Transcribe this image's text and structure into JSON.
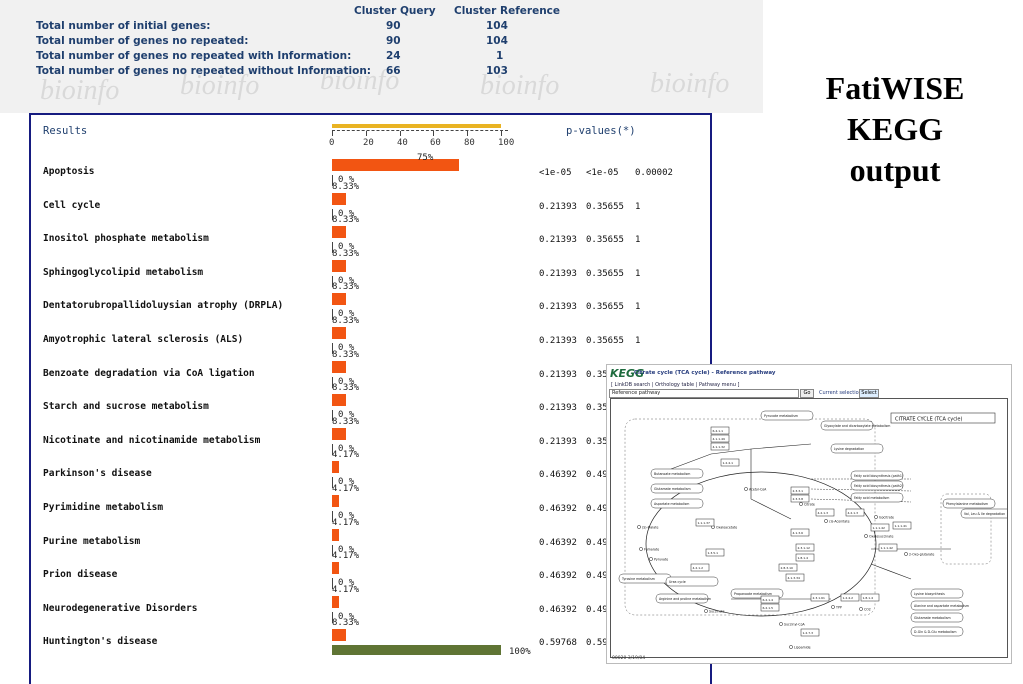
{
  "summary": {
    "col_query": "Cluster Query",
    "col_reference": "Cluster Reference",
    "watermark": "bioinfo",
    "rows": [
      {
        "label": "Total number of initial genes:",
        "query": "90",
        "reference": "104"
      },
      {
        "label": "Total number of genes no repeated:",
        "query": "90",
        "reference": "104"
      },
      {
        "label": "Total number of genes no repeated with Information:",
        "query": "24",
        "reference": "1"
      },
      {
        "label": "Total number of genes no repeated without Information:",
        "query": "66",
        "reference": "103"
      }
    ]
  },
  "title": {
    "line1": "FatiWISE",
    "line2": "KEGG",
    "line3": "output"
  },
  "results": {
    "header": "Results",
    "pvalues_header": "p-values(*)",
    "scale_ticks": [
      "0",
      "20",
      "40",
      "60",
      "80",
      "100"
    ],
    "colors": {
      "bar": "#f25512",
      "bar_full": "#5f7434",
      "scale": "#e9b323",
      "border": "#161b80"
    },
    "rows": [
      {
        "name": "Apoptosis",
        "q": "75%",
        "q_frac": 0.75,
        "r": "0 %",
        "p1": "<1e-05",
        "p2": "<1e-05",
        "p3": "0.00002"
      },
      {
        "name": "Cell cycle",
        "q": "8.33%",
        "q_frac": 0.0833,
        "r": "0 %",
        "p1": "0.21393",
        "p2": "0.35655",
        "p3": "1"
      },
      {
        "name": "Inositol phosphate metabolism",
        "q": "8.33%",
        "q_frac": 0.0833,
        "r": "0 %",
        "p1": "0.21393",
        "p2": "0.35655",
        "p3": "1"
      },
      {
        "name": "Sphingoglycolipid metabolism",
        "q": "8.33%",
        "q_frac": 0.0833,
        "r": "0 %",
        "p1": "0.21393",
        "p2": "0.35655",
        "p3": "1"
      },
      {
        "name": "Dentatorubropallidoluysian atrophy (DRPLA)",
        "q": "8.33%",
        "q_frac": 0.0833,
        "r": "0 %",
        "p1": "0.21393",
        "p2": "0.35655",
        "p3": "1"
      },
      {
        "name": "Amyotrophic lateral sclerosis (ALS)",
        "q": "8.33%",
        "q_frac": 0.0833,
        "r": "0 %",
        "p1": "0.21393",
        "p2": "0.35655",
        "p3": "1"
      },
      {
        "name": "Benzoate degradation via CoA ligation",
        "q": "8.33%",
        "q_frac": 0.0833,
        "r": "0 %",
        "p1": "0.21393",
        "p2": "0.35",
        "p3": ""
      },
      {
        "name": "Starch and sucrose metabolism",
        "q": "8.33%",
        "q_frac": 0.0833,
        "r": "0 %",
        "p1": "0.21393",
        "p2": "0.35",
        "p3": ""
      },
      {
        "name": "Nicotinate and nicotinamide metabolism",
        "q": "8.33%",
        "q_frac": 0.0833,
        "r": "0 %",
        "p1": "0.21393",
        "p2": "0.35",
        "p3": ""
      },
      {
        "name": "Parkinson's disease",
        "q": "4.17%",
        "q_frac": 0.0417,
        "r": "0 %",
        "p1": "0.46392",
        "p2": "0.49",
        "p3": ""
      },
      {
        "name": "Pyrimidine metabolism",
        "q": "4.17%",
        "q_frac": 0.0417,
        "r": "0 %",
        "p1": "0.46392",
        "p2": "0.49",
        "p3": ""
      },
      {
        "name": "Purine metabolism",
        "q": "4.17%",
        "q_frac": 0.0417,
        "r": "0 %",
        "p1": "0.46392",
        "p2": "0.49",
        "p3": ""
      },
      {
        "name": "Prion disease",
        "q": "4.17%",
        "q_frac": 0.0417,
        "r": "0 %",
        "p1": "0.46392",
        "p2": "0.49",
        "p3": ""
      },
      {
        "name": "Neurodegenerative Disorders",
        "q": "4.17%",
        "q_frac": 0.0417,
        "r": "0 %",
        "p1": "0.46392",
        "p2": "0.49",
        "p3": ""
      },
      {
        "name": "Huntington's disease",
        "q": "8.33%",
        "q_frac": 0.0833,
        "r": "100%",
        "r_frac": 1.0,
        "p1": "0.59768",
        "p2": "0.59",
        "p3": ""
      }
    ]
  },
  "kegg": {
    "logo": "KEGG",
    "title": "Citrate cycle (TCA cycle) - Reference pathway",
    "links": "[ LinkDB search | Orthology table | Pathway menu ]",
    "select_value": "Reference pathway",
    "go_label": "Go",
    "current_selection": "Current selection",
    "select_button": "Select",
    "map_title": "CITRATE CYCLE (TCA cycle)",
    "footer": "00020 3/19/04",
    "nodes": [
      "Pyruvate metabolism",
      "Glyoxylate and dicarboxylate metabolism",
      "Lysine degradation",
      "Fatty acid biosynthesis (path1)",
      "Fatty acid biosynthesis (path2)",
      "Fatty acid metabolism",
      "Phenylalanine metabolism",
      "Val, Leu & Ile degradation",
      "Tyrosine metabolism",
      "Urea cycle",
      "Arginine and proline metabolism",
      "Propanoate metabolism",
      "Lysine biosynthesis",
      "Alanine and aspartate metabolism",
      "Glutamate metabolism",
      "D-Gln & D-Glu metabolism",
      "Butanoate metabolism",
      "Glutamate metabolism",
      "Aspartate metabolism",
      "Oxaloacetate",
      "Citrate",
      "cis-Aconitate",
      "Isocitrate",
      "Oxalosuccinate",
      "2-Oxo-glutarate",
      "Succinyl-CoA",
      "Succinate",
      "Fumarate",
      "(S)-Malate",
      "Acetyl-CoA",
      "Pyruvate",
      "Lipoamide",
      "TPP",
      "CO2"
    ],
    "enzymes": [
      "6.4.1.1",
      "4.1.1.49",
      "4.1.1.32",
      "2.3.3.1",
      "2.3.3.8",
      "4.2.1.3",
      "4.2.1.3",
      "1.1.1.42",
      "1.1.1.41",
      "1.1.1.42",
      "1.2.4.2",
      "1.8.1.4",
      "2.3.1.61",
      "6.2.1.4",
      "6.2.1.5",
      "1.3.5.1",
      "4.2.1.2",
      "1.1.1.37",
      "1.2.4.1",
      "2.3.1.12",
      "1.8.1.4",
      "4.1.3.6",
      "2.8.3.10",
      "4.1.3.34",
      "1.2.7.3"
    ]
  }
}
